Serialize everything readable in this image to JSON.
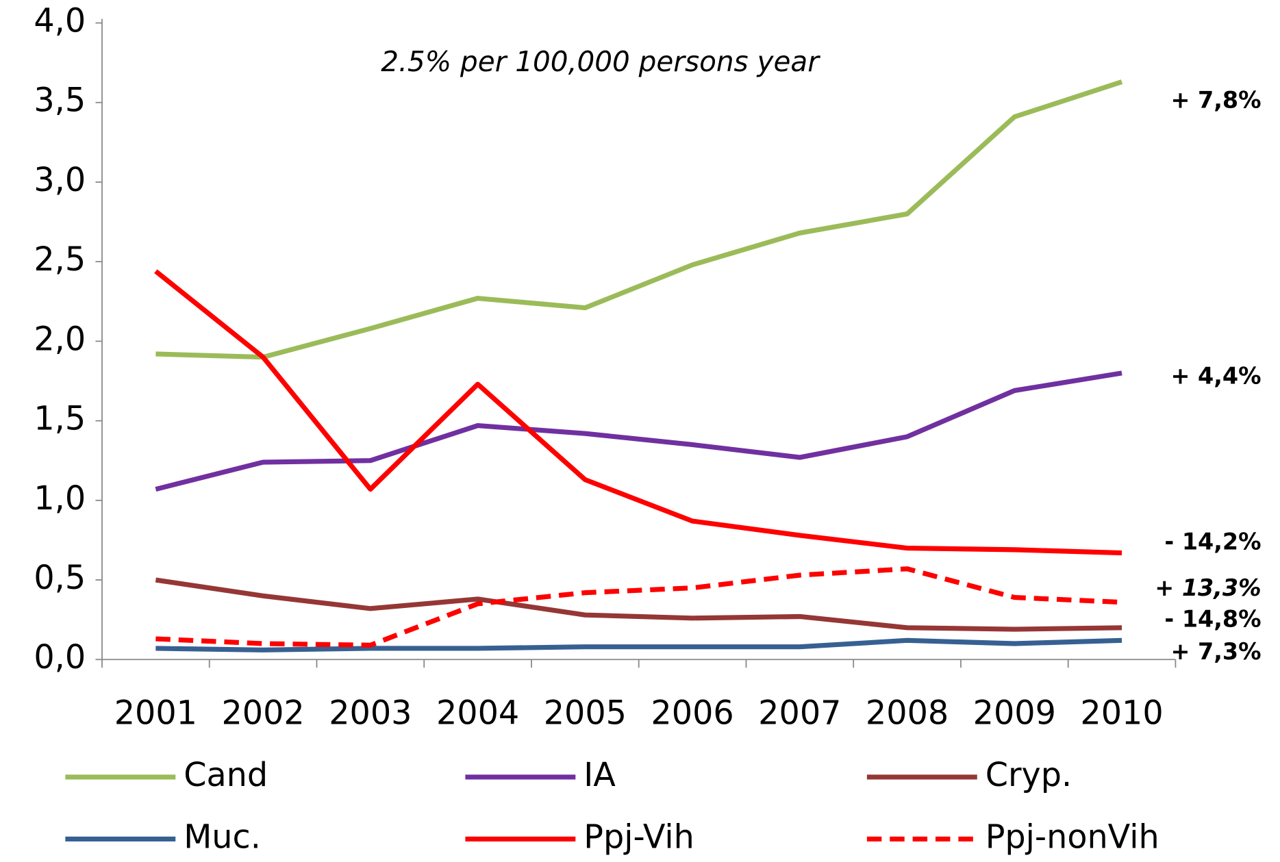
{
  "chart_data": {
    "type": "line",
    "subtitle": "2.5% per 100,000 persons year",
    "categories": [
      "2001",
      "2002",
      "2003",
      "2004",
      "2005",
      "2006",
      "2007",
      "2008",
      "2009",
      "2010"
    ],
    "ylim": [
      0,
      4
    ],
    "yticks": [
      {
        "value": 0,
        "label": "0,0"
      },
      {
        "value": 0.5,
        "label": "0,5"
      },
      {
        "value": 1,
        "label": "1,0"
      },
      {
        "value": 1.5,
        "label": "1,5"
      },
      {
        "value": 2,
        "label": "2,0"
      },
      {
        "value": 2.5,
        "label": "2,5"
      },
      {
        "value": 3,
        "label": "3,0"
      },
      {
        "value": 3.5,
        "label": "3,5"
      },
      {
        "value": 4,
        "label": "4,0"
      }
    ],
    "series": [
      {
        "name": "Cand",
        "color": "#9bbb59",
        "values": [
          1.92,
          1.9,
          2.08,
          2.27,
          2.21,
          2.48,
          2.68,
          2.8,
          3.41,
          3.63
        ]
      },
      {
        "name": "IA",
        "color": "#7030a0",
        "values": [
          1.07,
          1.24,
          1.25,
          1.47,
          1.42,
          1.35,
          1.27,
          1.4,
          1.69,
          1.8
        ]
      },
      {
        "name": "Cryp.",
        "color": "#953735",
        "values": [
          0.5,
          0.4,
          0.32,
          0.38,
          0.28,
          0.26,
          0.27,
          0.2,
          0.19,
          0.2
        ]
      },
      {
        "name": "Muc.",
        "color": "#376092",
        "values": [
          0.07,
          0.06,
          0.07,
          0.07,
          0.08,
          0.08,
          0.08,
          0.12,
          0.1,
          0.12
        ]
      },
      {
        "name": "Ppj-Vih",
        "color": "#ff0000",
        "values": [
          2.44,
          1.9,
          1.07,
          1.73,
          1.13,
          0.87,
          0.78,
          0.7,
          0.69,
          0.67
        ]
      },
      {
        "name": "Ppj-nonVih",
        "color": "#ff0000",
        "dashed": true,
        "values": [
          0.13,
          0.1,
          0.09,
          0.35,
          0.42,
          0.45,
          0.53,
          0.57,
          0.39,
          0.36
        ]
      }
    ],
    "annotations": [
      {
        "text": "+ 7,8%",
        "color": "#92d050"
      },
      {
        "text": "+ 4,4%",
        "color": "#7030a0"
      },
      {
        "text": "- 14,2%",
        "color": "#ff0000"
      },
      {
        "text": "+ 13,3%",
        "color": "#ff0000",
        "italic": true
      },
      {
        "text": "- 14,8%",
        "color": "#c00000"
      },
      {
        "text": "+ 7,3%",
        "color": "#0070c0"
      }
    ]
  }
}
